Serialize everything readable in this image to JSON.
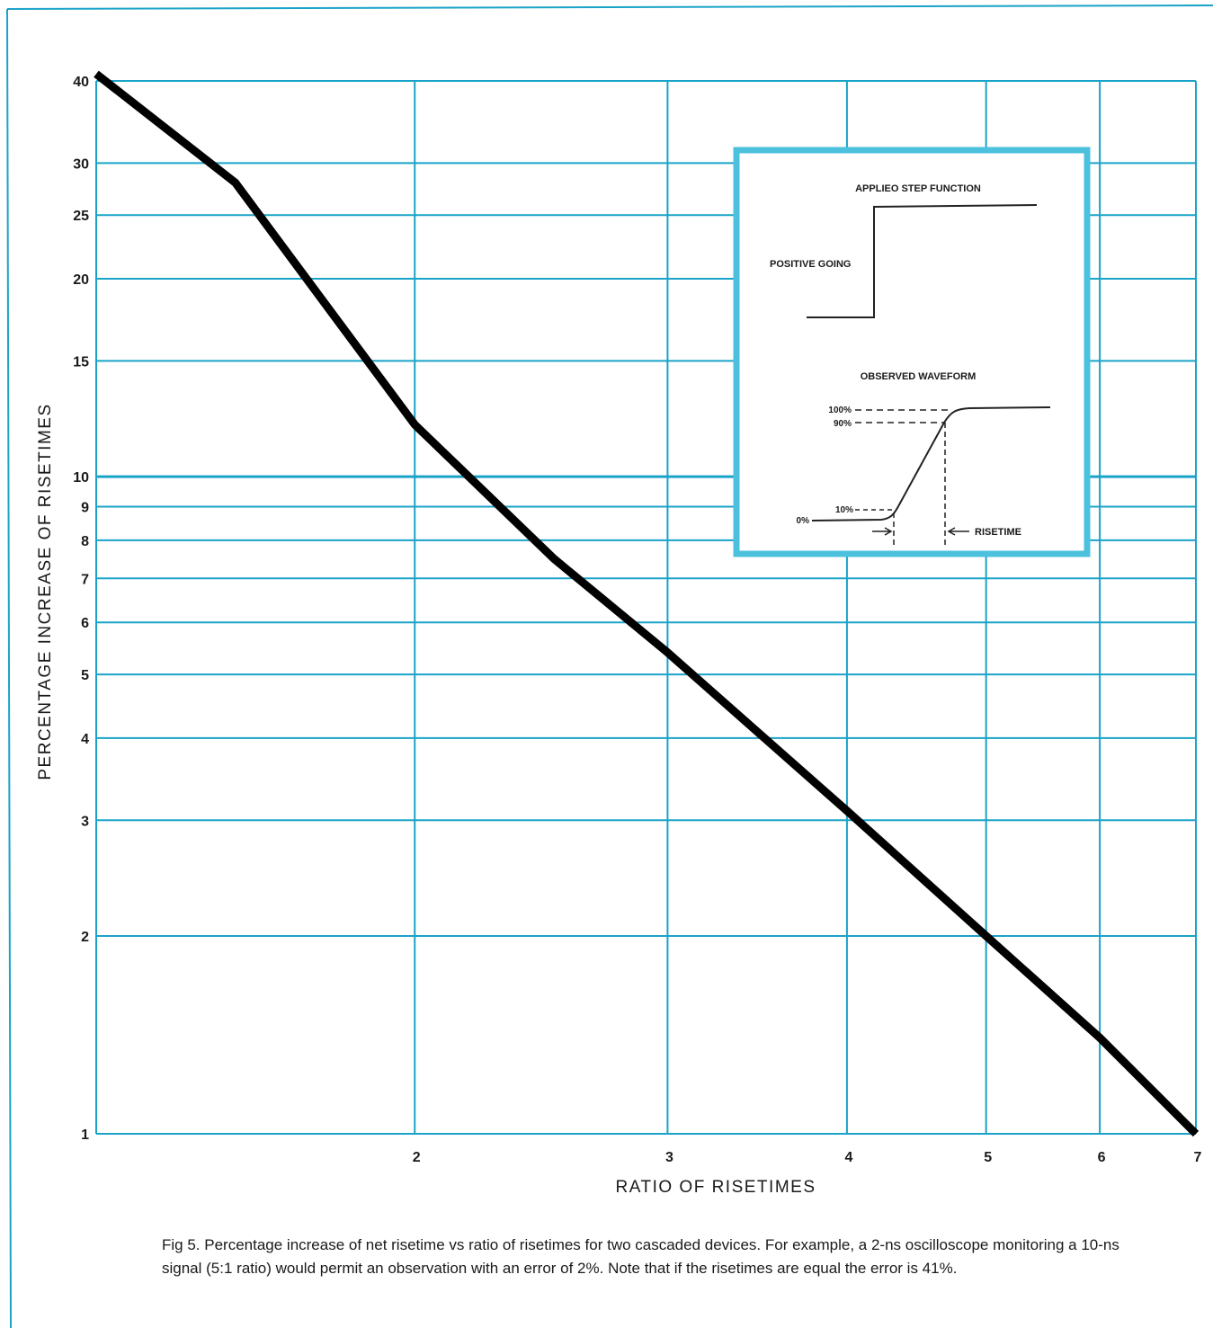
{
  "chart_data": {
    "type": "line",
    "scale": "log-log",
    "xlabel": "RATIO OF RISETIMES",
    "ylabel": "PERCENTAGE INCREASE OF RISETIMES",
    "xlim": [
      1.2,
      7
    ],
    "ylim": [
      1,
      40
    ],
    "x_ticks": [
      2,
      3,
      4,
      5,
      6,
      7
    ],
    "y_ticks": [
      1,
      2,
      3,
      4,
      5,
      6,
      7,
      8,
      9,
      10,
      15,
      20,
      25,
      30,
      40
    ],
    "grid": true,
    "series": [
      {
        "x": [
          1.2,
          1.5,
          2,
          2.5,
          3,
          4,
          5,
          6,
          7
        ],
        "y": [
          41,
          28,
          12,
          7.5,
          5.4,
          3.1,
          2,
          1.4,
          1
        ]
      }
    ]
  },
  "inset": {
    "title_step": "APPLIEO STEP FUNCTION",
    "label_positive": "POSITIVE GOING",
    "title_observed": "OBSERVED WAVEFORM",
    "level_100": "100%",
    "level_90": "90%",
    "level_10": "10%",
    "level_0": "0%",
    "label_risetime": "RISETIME"
  },
  "caption": "Fig 5. Percentage increase of net risetime vs ratio of risetimes for two cascaded devices. For example, a 2-ns oscilloscope monitoring a 10-ns signal (5:1 ratio) would permit an observation with an error of 2%. Note that if the risetimes are equal the error is 41%.",
  "colors": {
    "grid": "#1aa3c8",
    "frame": "#1aa3c8",
    "curve": "#000000",
    "inset_border": "#4cc1de"
  }
}
